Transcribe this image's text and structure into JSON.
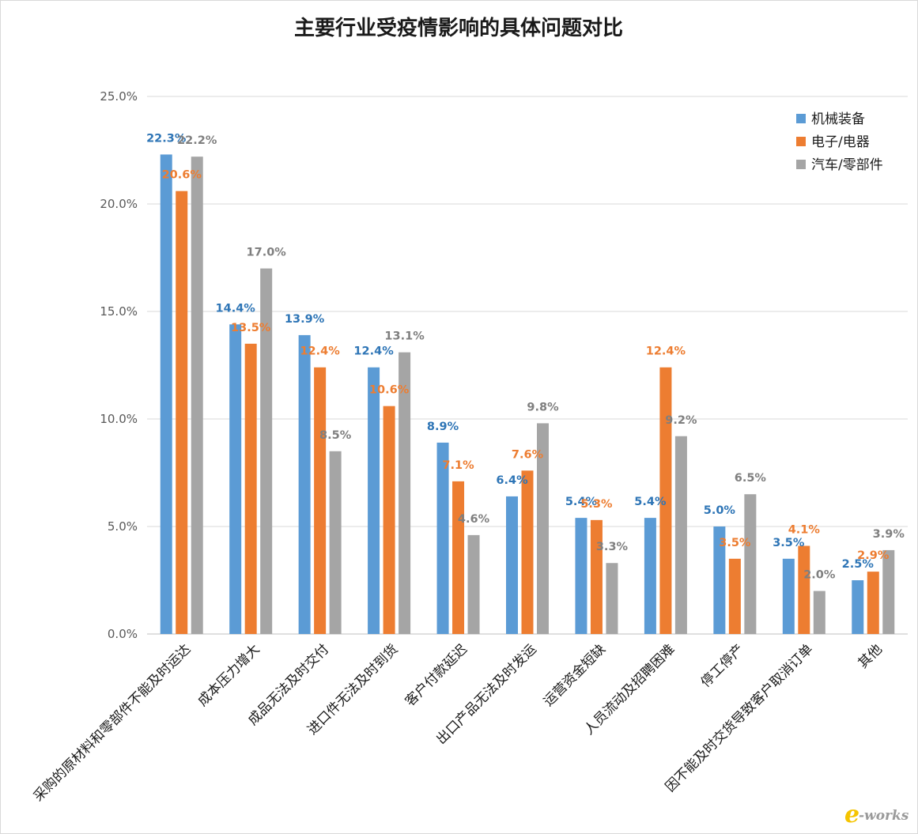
{
  "chart_data": {
    "type": "bar",
    "title": "主要行业受疫情影响的具体问题对比",
    "xlabel": "",
    "ylabel": "",
    "ylim": [
      0,
      25
    ],
    "yticks": [
      "0.0%",
      "5.0%",
      "10.0%",
      "15.0%",
      "20.0%",
      "25.0%"
    ],
    "grid": true,
    "legend_position": "top-right",
    "categories": [
      "采购的原材料和零部件不能及时运达",
      "成本压力增大",
      "成品无法及时交付",
      "进口件无法及时到货",
      "客户付款延迟",
      "出口产品无法及时发运",
      "运营资金短缺",
      "人员流动及招聘困难",
      "停工停产",
      "因不能及时交货导致客户取消订单",
      "其他"
    ],
    "series": [
      {
        "name": "机械装备",
        "color": "#5b9bd5",
        "label_color": "#2e75b6",
        "values": [
          22.3,
          14.4,
          13.9,
          12.4,
          8.9,
          6.4,
          5.4,
          5.4,
          5.0,
          3.5,
          2.5
        ],
        "labels": [
          "22.3%",
          "14.4%",
          "13.9%",
          "12.4%",
          "8.9%",
          "6.4%",
          "5.4%",
          "5.4%",
          "5.0%",
          "3.5%",
          "2.5%"
        ]
      },
      {
        "name": "电子/电器",
        "color": "#ed7d31",
        "label_color": "#ed7d31",
        "values": [
          20.6,
          13.5,
          12.4,
          10.6,
          7.1,
          7.6,
          5.3,
          12.4,
          3.5,
          4.1,
          2.9
        ],
        "labels": [
          "20.6%",
          "13.5%",
          "12.4%",
          "10.6%",
          "7.1%",
          "7.6%",
          "5.3%",
          "12.4%",
          "3.5%",
          "4.1%",
          "2.9%"
        ]
      },
      {
        "name": "汽车/零部件",
        "color": "#a5a5a5",
        "label_color": "#7f7f7f",
        "values": [
          22.2,
          17.0,
          8.5,
          13.1,
          4.6,
          9.8,
          3.3,
          9.2,
          6.5,
          2.0,
          3.9
        ],
        "labels": [
          "22.2%",
          "17.0%",
          "8.5%",
          "13.1%",
          "4.6%",
          "9.8%",
          "3.3%",
          "9.2%",
          "6.5%",
          "2.0%",
          "3.9%"
        ]
      }
    ]
  },
  "watermark": {
    "e": "e",
    "rest": "-works"
  }
}
